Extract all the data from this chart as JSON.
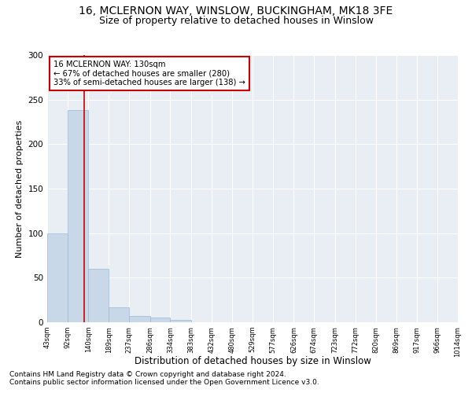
{
  "title1": "16, MCLERNON WAY, WINSLOW, BUCKINGHAM, MK18 3FE",
  "title2": "Size of property relative to detached houses in Winslow",
  "xlabel": "Distribution of detached houses by size in Winslow",
  "ylabel": "Number of detached properties",
  "footnote1": "Contains HM Land Registry data © Crown copyright and database right 2024.",
  "footnote2": "Contains public sector information licensed under the Open Government Licence v3.0.",
  "annotation_line1": "16 MCLERNON WAY: 130sqm",
  "annotation_line2": "← 67% of detached houses are smaller (280)",
  "annotation_line3": "33% of semi-detached houses are larger (138) →",
  "bar_edges": [
    43,
    92,
    140,
    189,
    237,
    286,
    334,
    383,
    432,
    480,
    529,
    577,
    626,
    674,
    723,
    772,
    820,
    869,
    917,
    966,
    1014
  ],
  "bar_values": [
    100,
    238,
    60,
    17,
    7,
    5,
    3,
    0,
    0,
    0,
    0,
    0,
    0,
    0,
    0,
    0,
    0,
    0,
    0,
    0
  ],
  "bar_color": "#c8d8e8",
  "bar_edge_color": "#a0b8d0",
  "property_size": 130,
  "vline_color": "#cc0000",
  "annotation_box_color": "#cc0000",
  "ylim": [
    0,
    300
  ],
  "yticks": [
    0,
    50,
    100,
    150,
    200,
    250,
    300
  ],
  "fig_background": "#ffffff",
  "plot_background": "#e8eef4",
  "grid_color": "#ffffff",
  "title1_fontsize": 10,
  "title2_fontsize": 9,
  "xlabel_fontsize": 8.5,
  "ylabel_fontsize": 8,
  "footnote_fontsize": 6.5
}
